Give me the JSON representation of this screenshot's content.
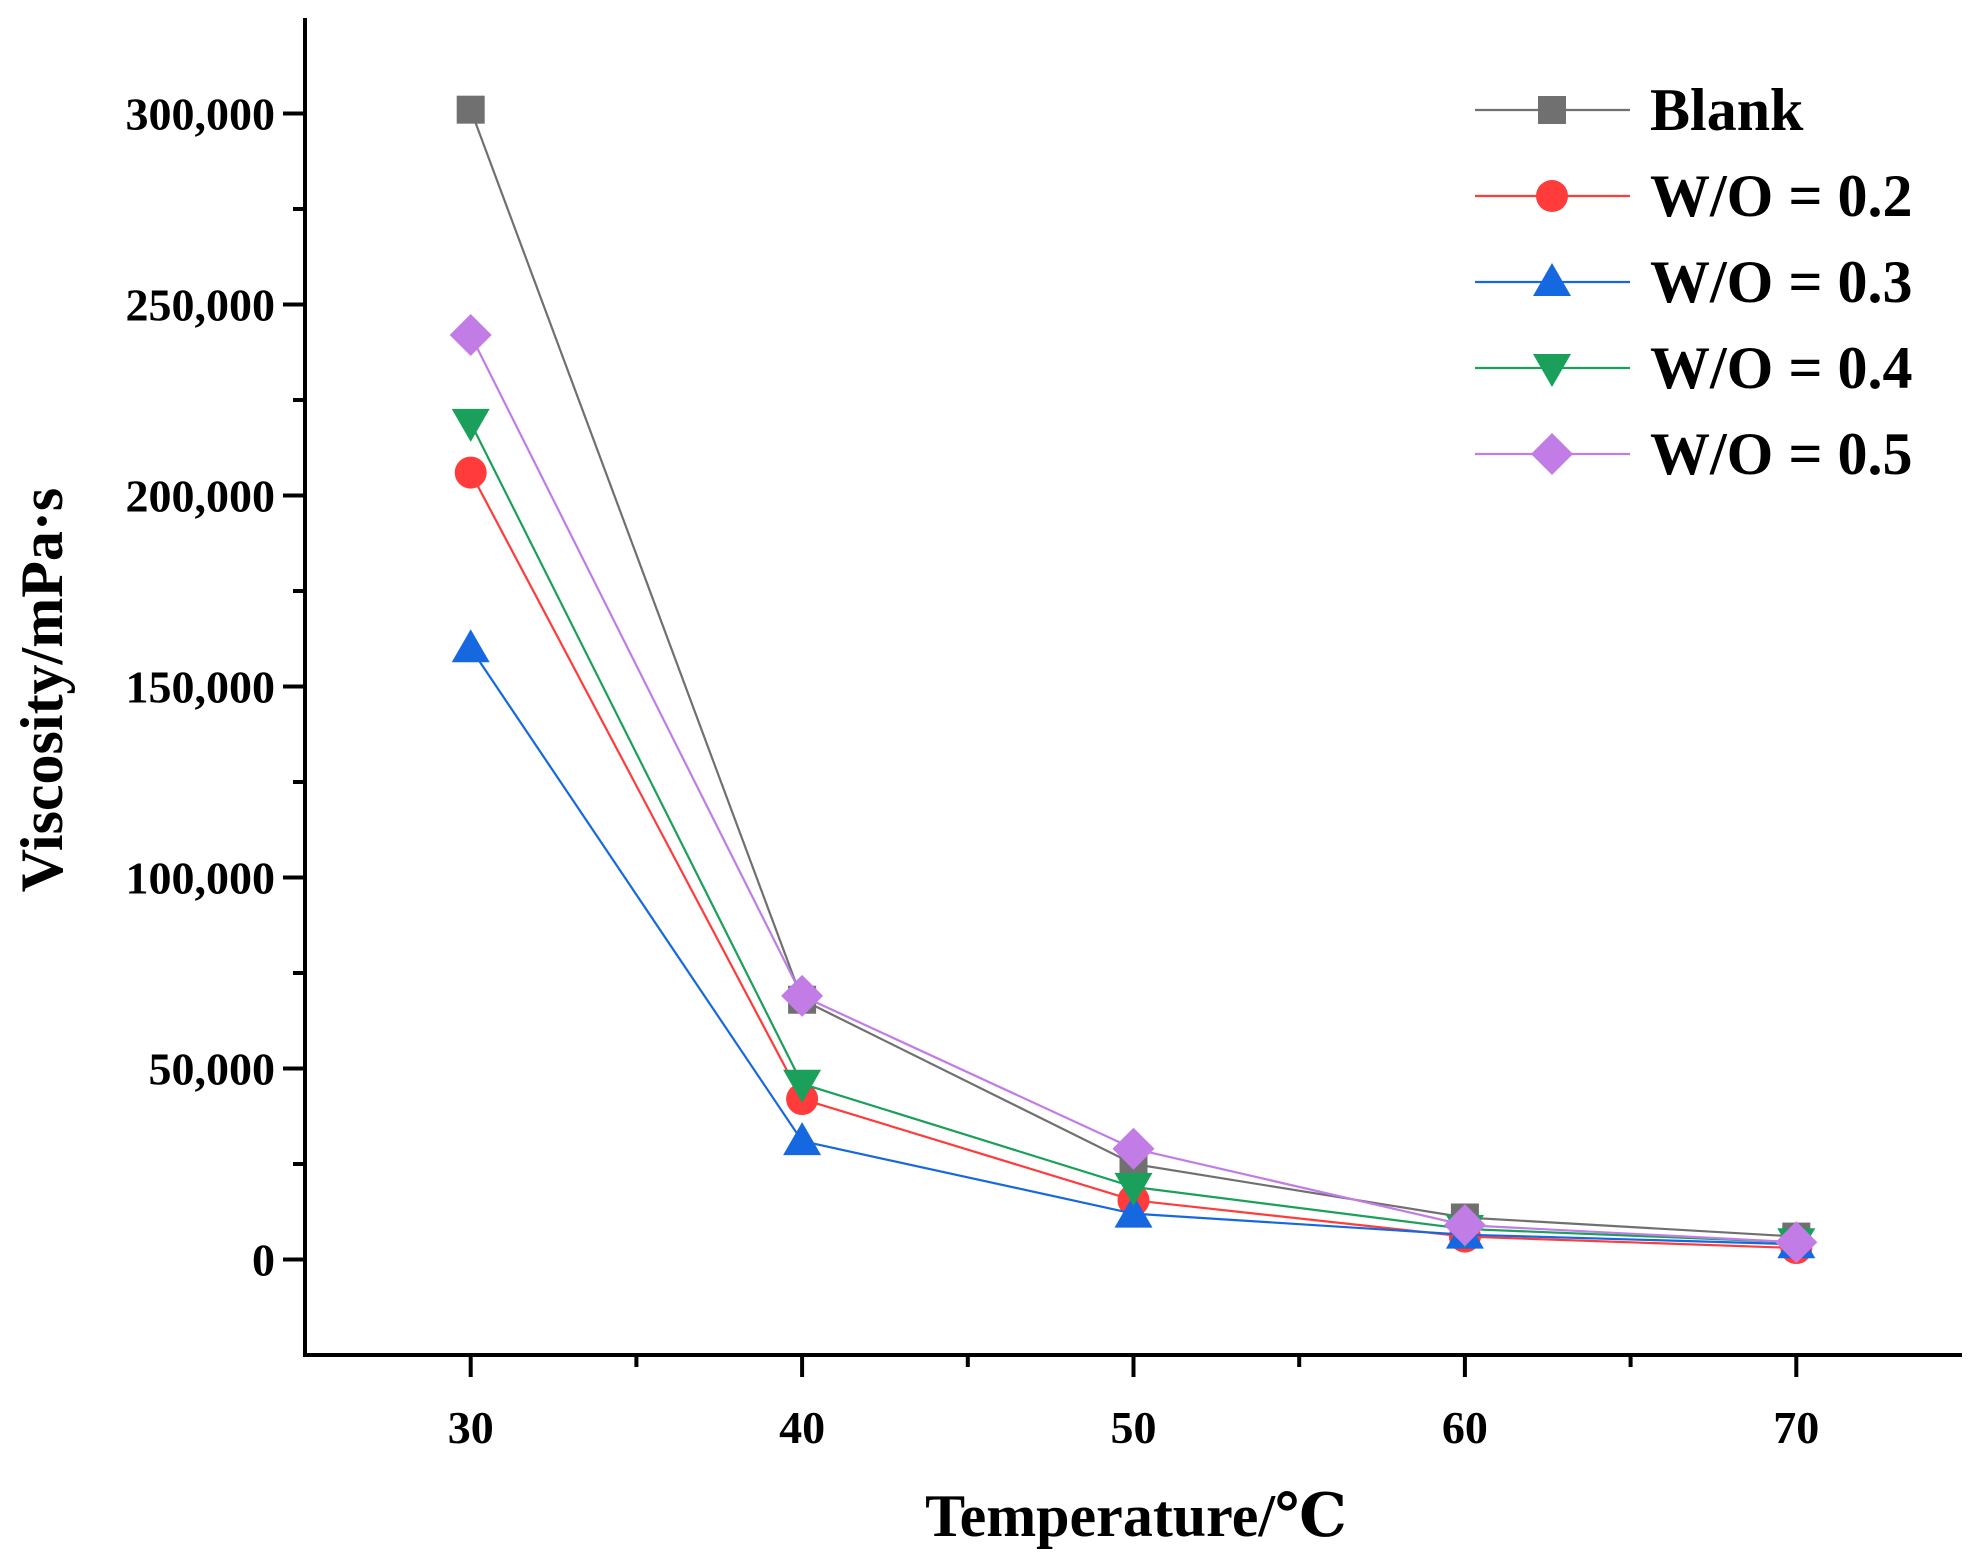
{
  "chart_data": {
    "type": "line",
    "title": "",
    "xlabel": "Temperature/℃",
    "ylabel": "Viscosity/mPa·s",
    "x": [
      30,
      40,
      50,
      60,
      70
    ],
    "xlim": [
      25,
      75
    ],
    "ylim": [
      -25000,
      325000
    ],
    "xticks": [
      30,
      40,
      50,
      60,
      70
    ],
    "xtick_labels": [
      "30",
      "40",
      "50",
      "60",
      "70"
    ],
    "yticks": [
      0,
      50000,
      100000,
      150000,
      200000,
      250000,
      300000
    ],
    "ytick_labels": [
      "0",
      "50,000",
      "100,000",
      "150,000",
      "200,000",
      "250,000",
      "300,000"
    ],
    "grid": false,
    "legend_position": "top-right",
    "series": [
      {
        "name": "Blank",
        "marker": "square",
        "color": "#707070",
        "values": [
          301000,
          68000,
          25000,
          11000,
          6000
        ]
      },
      {
        "name": "W/O = 0.2",
        "marker": "circle",
        "color": "#ff3b3b",
        "values": [
          206000,
          42000,
          15500,
          6000,
          3000
        ]
      },
      {
        "name": "W/O = 0.3",
        "marker": "triangle-up",
        "color": "#1668e0",
        "values": [
          160000,
          31000,
          12000,
          6500,
          4000
        ]
      },
      {
        "name": "W/O = 0.4",
        "marker": "triangle-down",
        "color": "#1aa05a",
        "values": [
          219000,
          46000,
          19000,
          8000,
          4500
        ]
      },
      {
        "name": "W/O = 0.5",
        "marker": "diamond",
        "color": "#c27ce6",
        "values": [
          242000,
          69000,
          29000,
          9000,
          4500
        ]
      }
    ]
  }
}
